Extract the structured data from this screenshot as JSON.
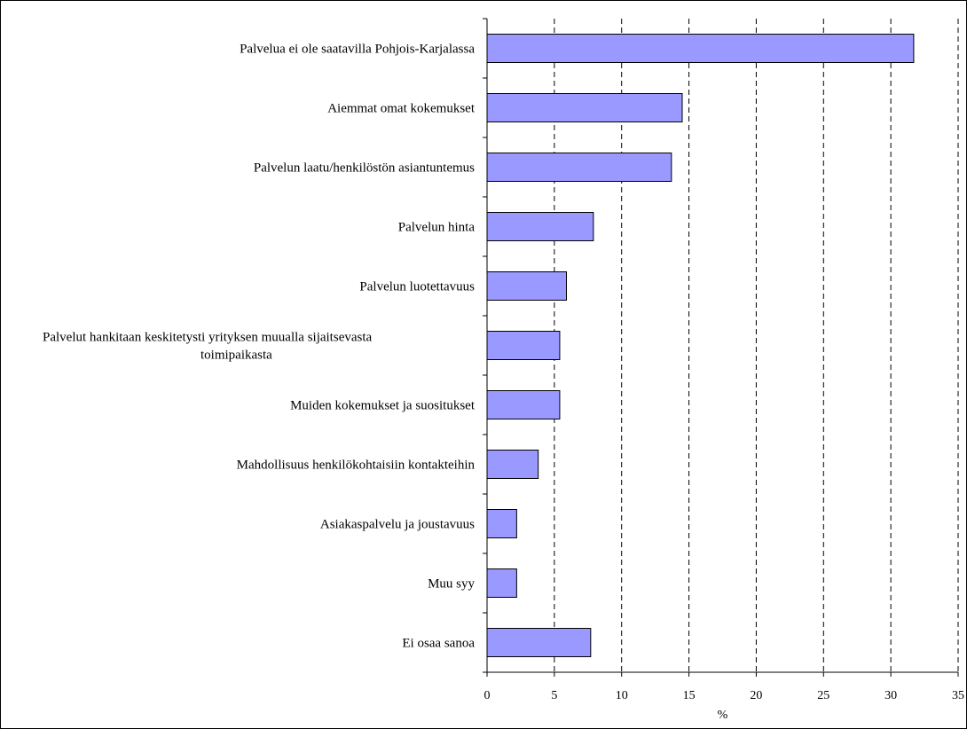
{
  "chart_data": {
    "type": "bar",
    "orientation": "horizontal",
    "categories": [
      [
        "Palvelua ei ole saatavilla Pohjois-Karjalassa"
      ],
      [
        "Aiemmat omat kokemukset"
      ],
      [
        "Palvelun laatu/henkilöstön asiantuntemus"
      ],
      [
        "Palvelun hinta"
      ],
      [
        "Palvelun luotettavuus"
      ],
      [
        "Palvelut hankitaan keskitetysti yrityksen muualla sijaitsevasta",
        "toimipaikasta"
      ],
      [
        "Muiden kokemukset ja suositukset"
      ],
      [
        "Mahdollisuus henkilökohtaisiin kontakteihin"
      ],
      [
        "Asiakaspalvelu ja joustavuus"
      ],
      [
        "Muu syy"
      ],
      [
        "Ei osaa sanoa"
      ]
    ],
    "values": [
      31.7,
      14.5,
      13.7,
      7.9,
      5.9,
      5.4,
      5.4,
      3.8,
      2.2,
      2.2,
      7.7
    ],
    "xlabel": "%",
    "xlim": [
      0,
      35
    ],
    "xticks": [
      0,
      5,
      10,
      15,
      20,
      25,
      30,
      35
    ],
    "grid": "vertical dashed",
    "colors": {
      "bar_fill": "#9999ff",
      "bar_stroke": "#000000",
      "grid": "#000000"
    }
  }
}
